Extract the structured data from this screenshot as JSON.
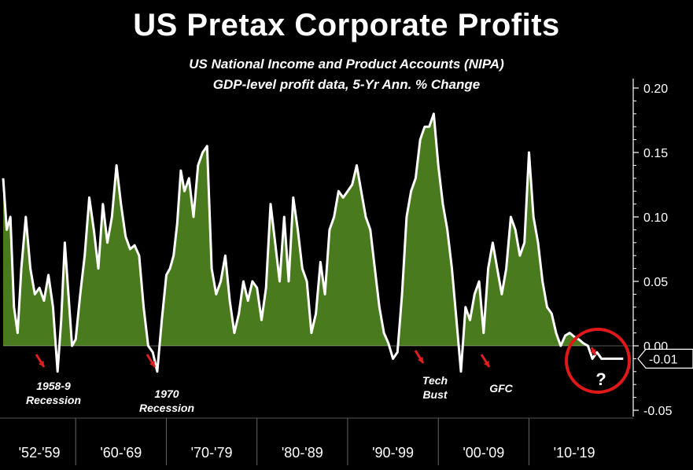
{
  "title": "US Pretax Corporate Profits",
  "subtitle_line1": "US National Income and Product Accounts (NIPA)",
  "subtitle_line2": "GDP-level profit data, 5-Yr Ann. % Change",
  "annotations": {
    "recession_1958": [
      "1958-9",
      "Recession"
    ],
    "recession_1970": [
      "1970",
      "Recession"
    ],
    "tech_bust": [
      "Tech",
      "Bust"
    ],
    "gfc": [
      "GFC"
    ],
    "question": "?"
  },
  "colors": {
    "background": "#000000",
    "fill": "#4a7a1e",
    "line": "#ffffff",
    "arrow": "#e02020",
    "circle": "#e01818"
  },
  "chart_data": {
    "type": "area",
    "xlim": [
      1952,
      2021.5
    ],
    "ylim": [
      -0.05,
      0.2
    ],
    "yticks": [
      -0.05,
      0.0,
      0.05,
      0.1,
      0.15,
      0.2
    ],
    "ytick_labels": [
      "-0.05",
      "0.00",
      "0.05",
      "0.10",
      "0.15",
      "0.20"
    ],
    "decade_ticks": [
      {
        "label": "'52-'59",
        "start": 1952,
        "end": 1960
      },
      {
        "label": "'60-'69",
        "start": 1960,
        "end": 1970
      },
      {
        "label": "'70-'79",
        "start": 1970,
        "end": 1980
      },
      {
        "label": "'80-'89",
        "start": 1980,
        "end": 1990
      },
      {
        "label": "'90-'99",
        "start": 1990,
        "end": 2000
      },
      {
        "label": "'00-'09",
        "start": 2000,
        "end": 2010
      },
      {
        "label": "'10-'19",
        "start": 2010,
        "end": 2020
      }
    ],
    "last_value_label": "-0.01",
    "x": [
      1952.0,
      1952.4,
      1952.8,
      1953.2,
      1953.6,
      1954.0,
      1954.5,
      1955.0,
      1955.5,
      1956.0,
      1956.5,
      1957.0,
      1957.5,
      1958.0,
      1958.4,
      1958.8,
      1959.2,
      1959.6,
      1960.0,
      1960.5,
      1961.0,
      1961.5,
      1962.0,
      1962.5,
      1963.0,
      1963.5,
      1964.0,
      1964.5,
      1965.0,
      1965.5,
      1966.0,
      1966.5,
      1967.0,
      1967.5,
      1968.0,
      1968.5,
      1969.0,
      1969.5,
      1970.0,
      1970.4,
      1970.8,
      1971.2,
      1971.6,
      1972.0,
      1972.5,
      1973.0,
      1973.5,
      1974.0,
      1974.5,
      1975.0,
      1975.5,
      1976.0,
      1976.5,
      1977.0,
      1977.5,
      1978.0,
      1978.5,
      1979.0,
      1979.5,
      1980.0,
      1980.5,
      1981.0,
      1981.5,
      1982.0,
      1982.5,
      1983.0,
      1983.5,
      1984.0,
      1984.5,
      1985.0,
      1985.5,
      1986.0,
      1986.5,
      1987.0,
      1987.5,
      1988.0,
      1988.5,
      1989.0,
      1989.5,
      1990.0,
      1990.5,
      1991.0,
      1991.5,
      1992.0,
      1992.5,
      1993.0,
      1993.5,
      1994.0,
      1994.5,
      1995.0,
      1995.5,
      1996.0,
      1996.5,
      1997.0,
      1997.5,
      1998.0,
      1998.5,
      1999.0,
      1999.5,
      2000.0,
      2000.5,
      2001.0,
      2001.5,
      2002.0,
      2002.5,
      2003.0,
      2003.5,
      2004.0,
      2004.5,
      2005.0,
      2005.5,
      2006.0,
      2006.5,
      2007.0,
      2007.5,
      2008.0,
      2008.5,
      2009.0,
      2009.5,
      2010.0,
      2010.5,
      2011.0,
      2011.5,
      2012.0,
      2012.5,
      2013.0,
      2013.5,
      2014.0,
      2014.5,
      2015.0,
      2015.5,
      2016.0,
      2016.5,
      2017.0,
      2017.5,
      2018.0,
      2018.5,
      2019.0,
      2019.5,
      2020.0,
      2020.4
    ],
    "y": [
      0.13,
      0.09,
      0.1,
      0.03,
      0.01,
      0.06,
      0.1,
      0.06,
      0.04,
      0.045,
      0.035,
      0.055,
      0.03,
      -0.02,
      0.02,
      0.08,
      0.04,
      0.0,
      0.005,
      0.04,
      0.07,
      0.115,
      0.09,
      0.06,
      0.11,
      0.08,
      0.1,
      0.14,
      0.11,
      0.085,
      0.075,
      0.078,
      0.07,
      0.03,
      0.0,
      -0.005,
      -0.02,
      0.02,
      0.055,
      0.06,
      0.07,
      0.095,
      0.136,
      0.12,
      0.13,
      0.1,
      0.14,
      0.15,
      0.155,
      0.06,
      0.04,
      0.05,
      0.07,
      0.035,
      0.01,
      0.025,
      0.05,
      0.035,
      0.05,
      0.045,
      0.02,
      0.045,
      0.11,
      0.08,
      0.05,
      0.1,
      0.05,
      0.115,
      0.09,
      0.06,
      0.05,
      0.01,
      0.025,
      0.065,
      0.04,
      0.09,
      0.1,
      0.12,
      0.115,
      0.12,
      0.125,
      0.14,
      0.12,
      0.1,
      0.09,
      0.06,
      0.03,
      0.01,
      0.002,
      -0.01,
      -0.005,
      0.04,
      0.1,
      0.12,
      0.13,
      0.16,
      0.17,
      0.17,
      0.18,
      0.14,
      0.11,
      0.09,
      0.06,
      0.02,
      -0.02,
      0.03,
      0.02,
      0.04,
      0.05,
      0.01,
      0.06,
      0.08,
      0.06,
      0.04,
      0.06,
      0.1,
      0.09,
      0.07,
      0.08,
      0.15,
      0.1,
      0.08,
      0.05,
      0.03,
      0.025,
      0.01,
      0.0,
      0.008,
      0.01,
      0.007,
      0.005,
      0.002,
      0.0,
      -0.01,
      -0.005,
      -0.01,
      -0.01,
      -0.01,
      -0.01,
      -0.01,
      -0.01
    ]
  }
}
